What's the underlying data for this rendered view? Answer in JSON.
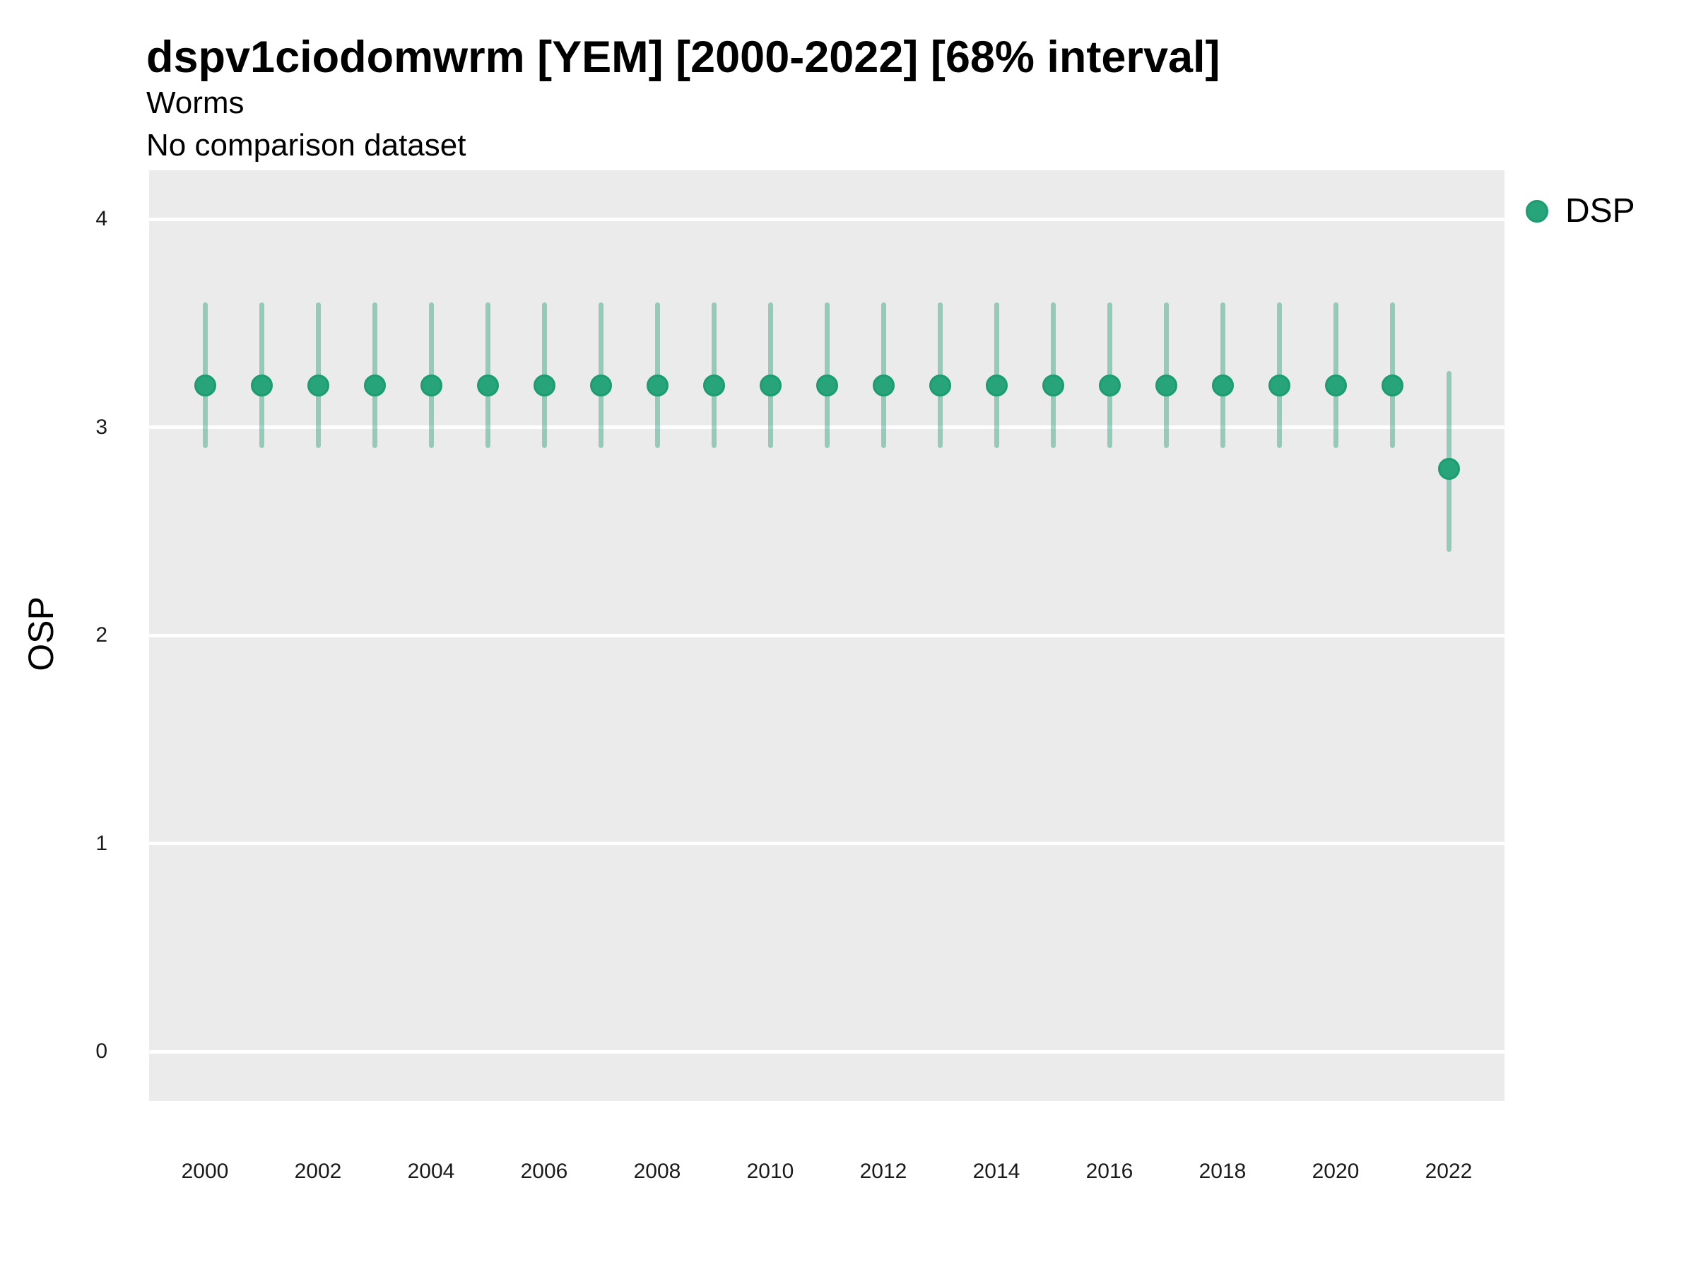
{
  "title": "dspv1ciodomwrm [YEM] [2000-2022] [68% interval]",
  "subtitle": "Worms",
  "caption": "No comparison dataset",
  "legend": {
    "label": "DSP",
    "swatch": "filled-circle"
  },
  "y_axis": {
    "title": "OSP",
    "tick_labels": [
      "0",
      "1",
      "2",
      "3",
      "4"
    ]
  },
  "x_axis": {
    "tick_labels": [
      "2000",
      "2002",
      "2004",
      "2006",
      "2008",
      "2010",
      "2012",
      "2014",
      "2016",
      "2018",
      "2020",
      "2022"
    ]
  },
  "colors": {
    "point_fill": "#28A47B",
    "point_stroke": "#1C9C72",
    "interval_line": "rgba(27,158,119,0.42)",
    "panel_background": "#EBEBEB",
    "gridline": "#FFFFFF",
    "tick_text": "#1a1a1a",
    "text": "#000000"
  },
  "chart_data": {
    "type": "pointrange-scatter",
    "title": "dspv1ciodomwrm [YEM] [2000-2022] [68% interval]",
    "subtitle": "Worms",
    "note": "No comparison dataset",
    "interval": "68%",
    "xlabel": "",
    "ylabel": "OSP",
    "legend_position": "right-top",
    "grid": "major-horizontal-only",
    "yticks": [
      0,
      1,
      2,
      3,
      4
    ],
    "ylim": [
      -0.24,
      4.23
    ],
    "xticks_labeled_every": 2,
    "series": [
      {
        "name": "DSP",
        "x": [
          2000,
          2001,
          2002,
          2003,
          2004,
          2005,
          2006,
          2007,
          2008,
          2009,
          2010,
          2011,
          2012,
          2013,
          2014,
          2015,
          2016,
          2017,
          2018,
          2019,
          2020,
          2021,
          2022
        ],
        "mid": [
          3.2,
          3.2,
          3.2,
          3.2,
          3.2,
          3.2,
          3.2,
          3.2,
          3.2,
          3.2,
          3.2,
          3.2,
          3.2,
          3.2,
          3.2,
          3.2,
          3.2,
          3.2,
          3.2,
          3.2,
          3.2,
          3.2,
          2.8
        ],
        "lo": [
          2.9,
          2.9,
          2.9,
          2.9,
          2.9,
          2.9,
          2.9,
          2.9,
          2.9,
          2.9,
          2.9,
          2.9,
          2.9,
          2.9,
          2.9,
          2.9,
          2.9,
          2.9,
          2.9,
          2.9,
          2.9,
          2.9,
          2.4
        ],
        "hi": [
          3.6,
          3.6,
          3.6,
          3.6,
          3.6,
          3.6,
          3.6,
          3.6,
          3.6,
          3.6,
          3.6,
          3.6,
          3.6,
          3.6,
          3.6,
          3.6,
          3.6,
          3.6,
          3.6,
          3.6,
          3.6,
          3.6,
          3.27
        ]
      }
    ]
  }
}
